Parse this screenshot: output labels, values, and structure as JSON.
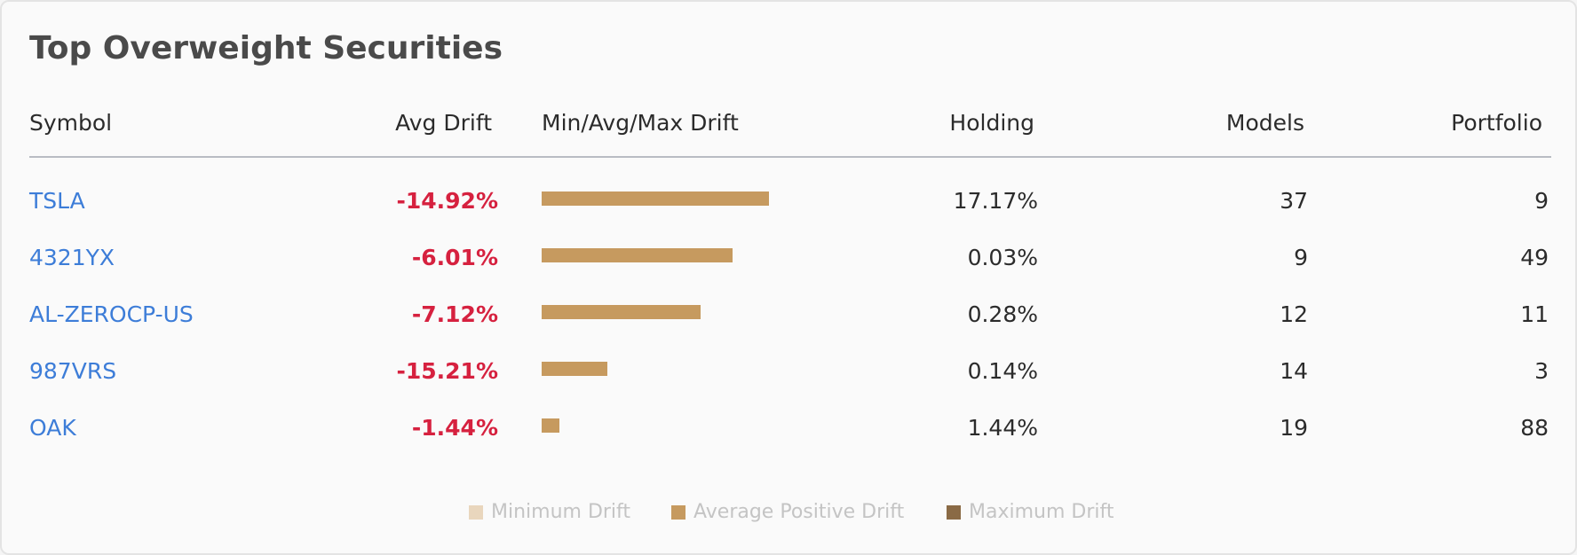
{
  "title": "Top Overweight Securities",
  "columns": {
    "symbol": "Symbol",
    "avg_drift": "Avg Drift",
    "range": "Min/Avg/Max Drift",
    "holding": "Holding",
    "models": "Models",
    "portfolio": "Portfolio"
  },
  "rows": [
    {
      "symbol": "TSLA",
      "avg_drift": "-14.92%",
      "holding": "17.17%",
      "models": "37",
      "portfolio": "9",
      "bar_fraction": 1.0
    },
    {
      "symbol": "4321YX",
      "avg_drift": "-6.01%",
      "holding": "0.03%",
      "models": "9",
      "portfolio": "49",
      "bar_fraction": 0.84
    },
    {
      "symbol": "AL-ZEROCP-US",
      "avg_drift": "-7.12%",
      "holding": "0.28%",
      "models": "12",
      "portfolio": "11",
      "bar_fraction": 0.7
    },
    {
      "symbol": "987VRS",
      "avg_drift": "-15.21%",
      "holding": "0.14%",
      "models": "14",
      "portfolio": "3",
      "bar_fraction": 0.29
    },
    {
      "symbol": "OAK",
      "avg_drift": "-1.44%",
      "holding": "1.44%",
      "models": "19",
      "portfolio": "88",
      "bar_fraction": 0.08
    }
  ],
  "legend": [
    {
      "label": "Minimum Drift",
      "color": "#e9d6bd"
    },
    {
      "label": "Average Positive Drift",
      "color": "#c69a5f"
    },
    {
      "label": "Maximum Drift",
      "color": "#8a6a45"
    }
  ],
  "colors": {
    "link": "#3d7dd8",
    "negative": "#d6213f",
    "bar": "#c69a5f"
  }
}
